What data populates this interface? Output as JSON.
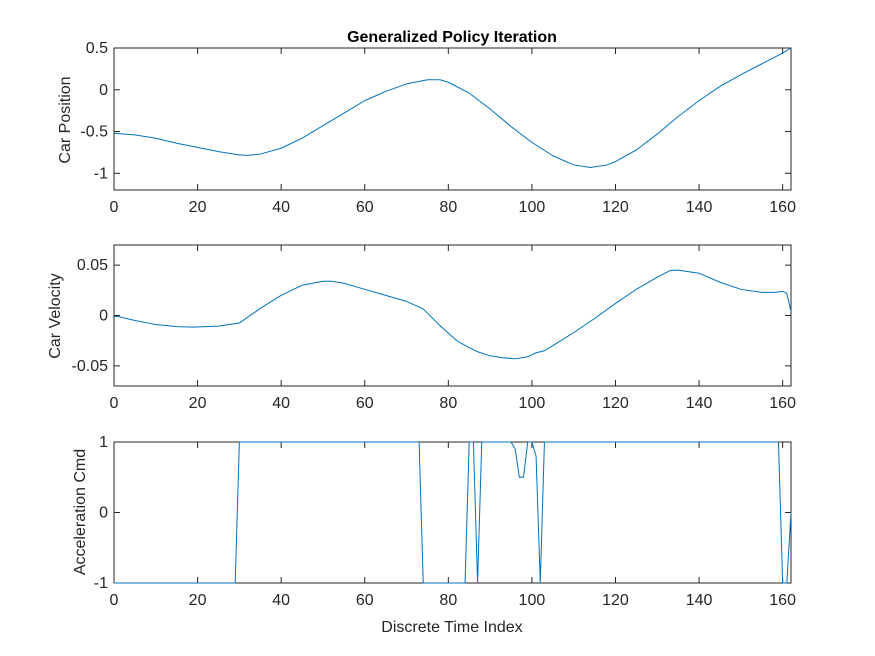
{
  "chart_data": [
    {
      "type": "line",
      "title": "Generalized Policy Iteration",
      "xlabel": "",
      "ylabel": "Car Position",
      "xlim": [
        0,
        162
      ],
      "ylim": [
        -1.2,
        0.5
      ],
      "xticks": [
        0,
        20,
        40,
        60,
        80,
        100,
        120,
        140,
        160
      ],
      "yticks": [
        -1,
        -0.5,
        0,
        0.5
      ],
      "ytick_labels": [
        "-1",
        "-0.5",
        "0",
        "0.5"
      ],
      "grid": false,
      "series": [
        {
          "color": "#0072BD",
          "x": [
            0,
            5,
            10,
            15,
            20,
            25,
            30,
            32,
            35,
            40,
            45,
            50,
            55,
            60,
            65,
            70,
            75,
            78,
            80,
            85,
            90,
            95,
            100,
            105,
            110,
            114,
            118,
            120,
            125,
            130,
            135,
            140,
            145,
            150,
            155,
            160,
            162
          ],
          "y": [
            -0.52,
            -0.54,
            -0.58,
            -0.64,
            -0.69,
            -0.74,
            -0.78,
            -0.785,
            -0.77,
            -0.7,
            -0.58,
            -0.43,
            -0.28,
            -0.13,
            -0.02,
            0.07,
            0.12,
            0.12,
            0.09,
            -0.04,
            -0.23,
            -0.44,
            -0.63,
            -0.79,
            -0.9,
            -0.93,
            -0.9,
            -0.86,
            -0.72,
            -0.53,
            -0.32,
            -0.13,
            0.04,
            0.18,
            0.31,
            0.44,
            0.5
          ]
        }
      ]
    },
    {
      "type": "line",
      "title": "",
      "xlabel": "",
      "ylabel": "Car Velocity",
      "xlim": [
        0,
        162
      ],
      "ylim": [
        -0.07,
        0.07
      ],
      "xticks": [
        0,
        20,
        40,
        60,
        80,
        100,
        120,
        140,
        160
      ],
      "yticks": [
        -0.05,
        0,
        0.05
      ],
      "ytick_labels": [
        "-0.05",
        "0",
        "0.05"
      ],
      "grid": false,
      "series": [
        {
          "color": "#0072BD",
          "x": [
            0,
            1,
            5,
            10,
            15,
            19,
            25,
            30,
            35,
            40,
            45,
            50,
            52,
            55,
            60,
            65,
            70,
            74,
            78,
            82,
            85,
            87,
            90,
            93,
            96,
            99,
            101,
            103,
            105,
            110,
            115,
            120,
            125,
            130,
            133,
            135,
            140,
            145,
            150,
            155,
            158,
            160,
            161,
            162
          ],
          "y": [
            -0.001,
            -0.001,
            -0.005,
            -0.009,
            -0.011,
            -0.0115,
            -0.0105,
            -0.0075,
            0.007,
            0.02,
            0.03,
            0.034,
            0.034,
            0.032,
            0.026,
            0.02,
            0.014,
            0.0065,
            -0.01,
            -0.025,
            -0.032,
            -0.036,
            -0.04,
            -0.042,
            -0.043,
            -0.041,
            -0.037,
            -0.035,
            -0.03,
            -0.017,
            -0.003,
            0.012,
            0.026,
            0.038,
            0.0445,
            0.045,
            0.042,
            0.033,
            0.026,
            0.023,
            0.023,
            0.024,
            0.022,
            0.004
          ]
        }
      ]
    },
    {
      "type": "line",
      "title": "",
      "xlabel": "Discrete Time Index",
      "ylabel": "Acceleration Cmd",
      "xlim": [
        0,
        162
      ],
      "ylim": [
        -1,
        1
      ],
      "xticks": [
        0,
        20,
        40,
        60,
        80,
        100,
        120,
        140,
        160
      ],
      "yticks": [
        -1,
        0,
        1
      ],
      "ytick_labels": [
        "-1",
        "0",
        "1"
      ],
      "grid": false,
      "series": [
        {
          "color": "#0072BD",
          "x": [
            0,
            29,
            30,
            73,
            74,
            84,
            85,
            86,
            87,
            88,
            95,
            96,
            97,
            98,
            99,
            100,
            101,
            102,
            103,
            159,
            160,
            161,
            162
          ],
          "y": [
            -1,
            -1,
            1,
            1,
            -1,
            -1,
            1,
            1,
            -1,
            1,
            1,
            0.9,
            0.5,
            0.5,
            1,
            1,
            0.8,
            -1,
            1,
            1,
            -1,
            -1,
            0
          ]
        }
      ]
    }
  ]
}
